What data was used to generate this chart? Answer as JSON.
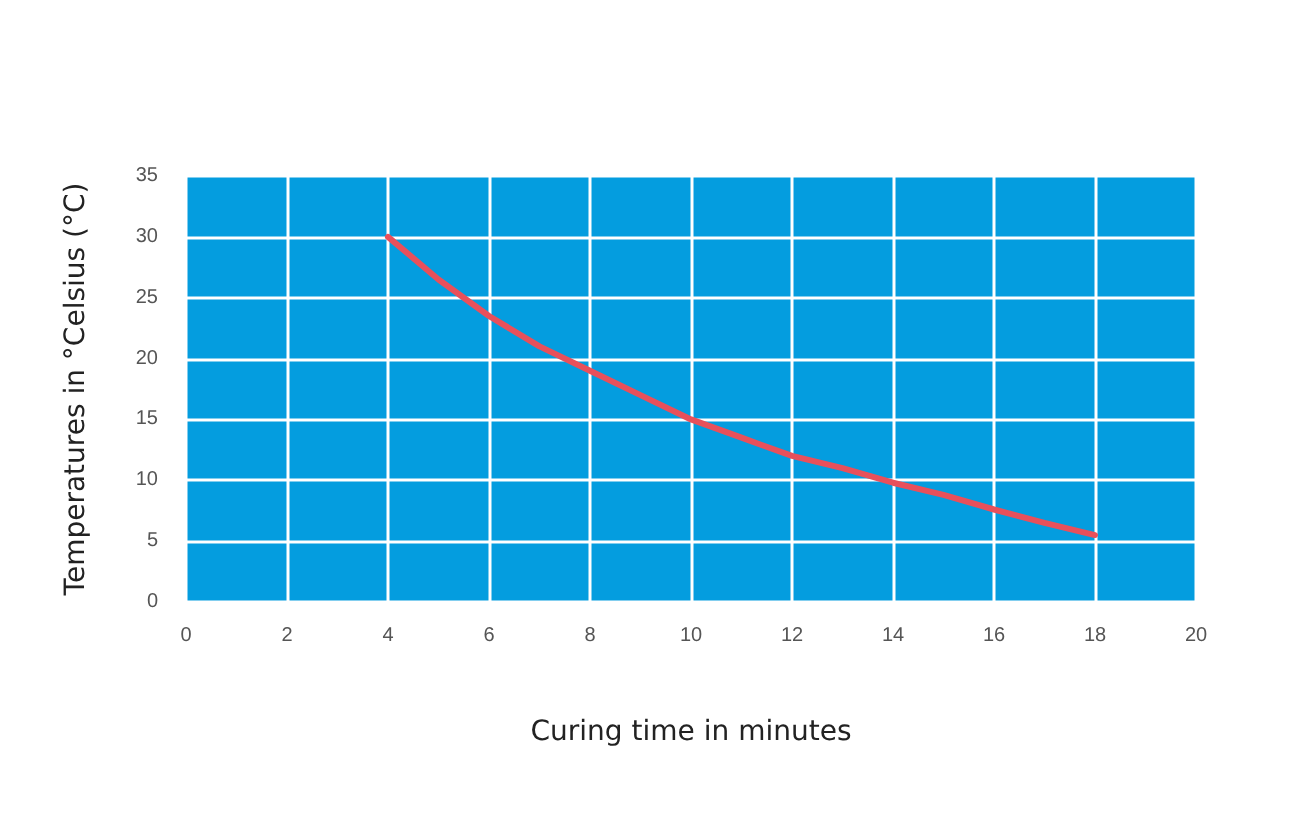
{
  "chart_data": {
    "type": "line",
    "xlabel": "Curing time in minutes",
    "ylabel": "Temperatures in °Celsius (°C)",
    "x": [
      4,
      5,
      6,
      7,
      8,
      9,
      10,
      11,
      12,
      13,
      14,
      15,
      16,
      17,
      18
    ],
    "series": [
      {
        "color": "#e8505b",
        "values": [
          30,
          26.5,
          23.5,
          21,
          19,
          17,
          15,
          13.5,
          12,
          11,
          9.8,
          8.8,
          7.6,
          6.5,
          5.5
        ]
      }
    ],
    "xlim": [
      0,
      20
    ],
    "xticks": [
      0,
      2,
      4,
      6,
      8,
      10,
      12,
      14,
      16,
      18,
      20
    ],
    "ylim": [
      0,
      35
    ],
    "yticks": [
      0,
      5,
      10,
      15,
      20,
      25,
      30,
      35
    ],
    "grid": true,
    "marker": "none",
    "line_style": "solid"
  }
}
